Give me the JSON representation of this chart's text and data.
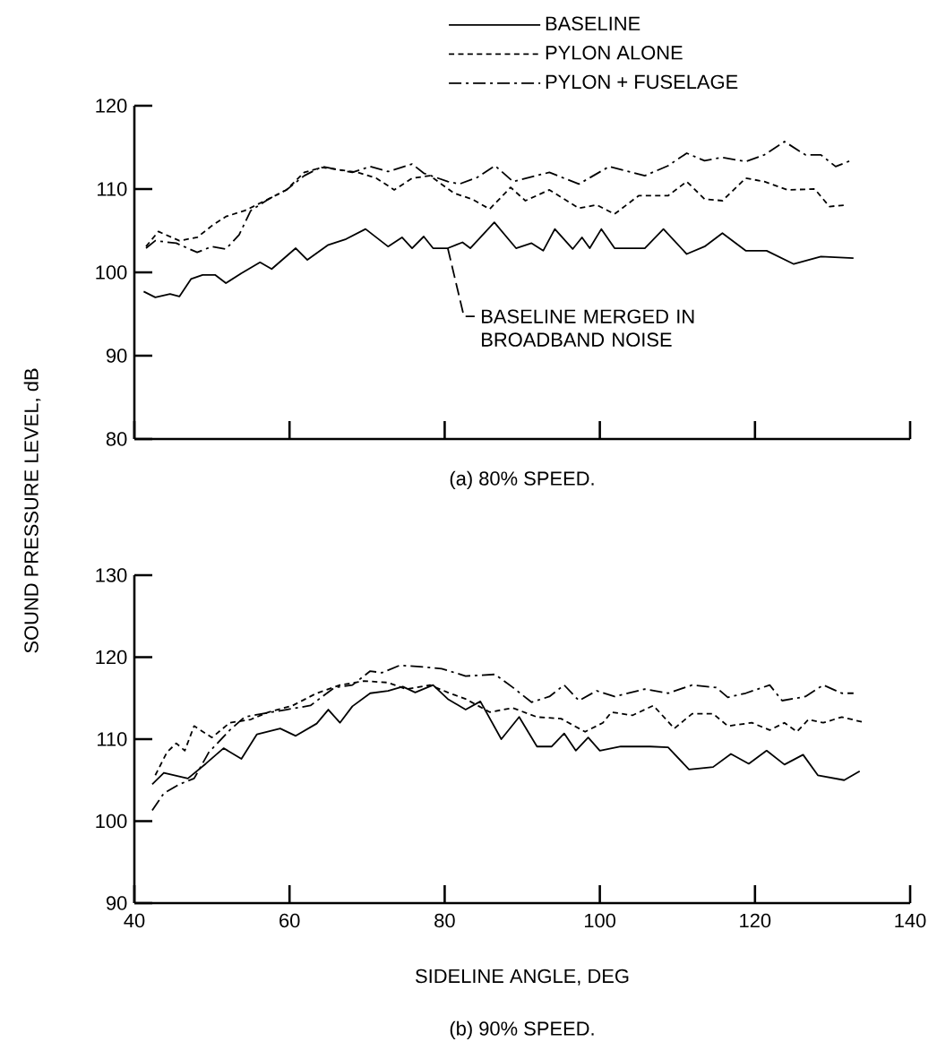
{
  "chart_data": [
    {
      "type": "line",
      "title": "(a) 80% SPEED.",
      "ylabel": "SOUND PRESSURE LEVEL, dB",
      "xlim": [
        40,
        140
      ],
      "ylim": [
        80,
        120
      ],
      "xticks": [
        40,
        60,
        80,
        100,
        120,
        140
      ],
      "yticks": [
        80,
        90,
        100,
        110,
        120
      ],
      "tick_labels": "y",
      "legend": "top right",
      "annotations": [
        {
          "text": "BASELINE MERGED IN BROADBAND NOISE",
          "x": 80.4,
          "y": 102.9
        }
      ],
      "series": [
        {
          "name": "BASELINE",
          "color": "#000000",
          "line_style": "solid",
          "x": [
            41.2,
            42.7,
            44.6,
            45.8,
            47.3,
            48.8,
            50.4,
            51.8,
            53.8,
            56.2,
            57.7,
            60.8,
            62.3,
            65,
            67.3,
            69.8,
            72.7,
            74.5,
            75.8,
            77.3,
            78.5,
            80.4,
            82.3,
            83.3,
            86.4,
            89.2,
            91.2,
            92.7,
            94.2,
            96.5,
            97.7,
            98.7,
            100.2,
            101.9,
            105.8,
            108.2,
            111.2,
            113.5,
            115.8,
            118.8,
            121.5,
            125,
            128.5,
            132.7
          ],
          "values": [
            97.7,
            97.0,
            97.4,
            97.1,
            99.2,
            99.7,
            99.7,
            98.7,
            99.9,
            101.2,
            100.4,
            102.9,
            101.5,
            103.3,
            104.0,
            105.2,
            103.1,
            104.2,
            102.9,
            104.3,
            102.9,
            102.9,
            103.6,
            102.9,
            106.0,
            102.9,
            103.5,
            102.6,
            105.2,
            102.8,
            104.2,
            102.9,
            105.2,
            102.9,
            102.9,
            105.2,
            102.2,
            103.1,
            104.7,
            102.6,
            102.6,
            101.0,
            101.9,
            101.7
          ]
        },
        {
          "name": "PYLON ALONE",
          "color": "#000000",
          "line_style": "dashed",
          "x": [
            41.5,
            43.1,
            45.8,
            48.1,
            50,
            51.8,
            54.2,
            57.3,
            59.6,
            61.9,
            64.2,
            66.5,
            68.8,
            71.2,
            73.5,
            75.8,
            78.1,
            81.2,
            83.5,
            85.8,
            88.5,
            90.4,
            93.5,
            97.3,
            99.6,
            101.9,
            105,
            108.8,
            111.2,
            113.5,
            115.8,
            118.8,
            121.2,
            124.2,
            127.7,
            129.6,
            131.9
          ],
          "values": [
            103.1,
            104.9,
            103.8,
            104.2,
            105.6,
            106.7,
            107.4,
            108.8,
            109.9,
            112.0,
            112.6,
            112.3,
            112.0,
            111.3,
            109.9,
            111.3,
            111.6,
            109.5,
            108.8,
            107.6,
            110.2,
            108.6,
            109.9,
            107.7,
            108.1,
            107.0,
            109.2,
            109.2,
            110.9,
            108.8,
            108.6,
            111.3,
            110.9,
            109.9,
            110.0,
            107.9,
            108.1
          ]
        },
        {
          "name": "PYLON + FUSELAGE",
          "color": "#000000",
          "line_style": "dashdot",
          "x": [
            41.5,
            42.7,
            45.4,
            48.1,
            50,
            51.8,
            53.5,
            55,
            57.3,
            59.6,
            61.9,
            64.2,
            68.1,
            70.4,
            72.7,
            75.8,
            77.3,
            80.4,
            81.9,
            84.2,
            86.5,
            88.8,
            93.5,
            97.3,
            101.2,
            105.8,
            108.8,
            111.2,
            113.5,
            115.8,
            118.8,
            121.2,
            123.8,
            126.5,
            128.5,
            130.4,
            132.3
          ],
          "values": [
            102.9,
            103.8,
            103.5,
            102.4,
            103.1,
            102.8,
            104.5,
            107.4,
            108.8,
            109.9,
            111.6,
            112.7,
            112.0,
            112.7,
            112.1,
            113.0,
            111.9,
            110.9,
            110.6,
            111.4,
            112.8,
            110.9,
            112.0,
            110.6,
            112.7,
            111.6,
            112.8,
            114.3,
            113.4,
            113.8,
            113.3,
            114.1,
            115.7,
            114.1,
            114.1,
            112.7,
            113.4
          ]
        }
      ]
    },
    {
      "type": "line",
      "title": "(b) 90% SPEED.",
      "xlabel": "SIDELINE ANGLE, DEG",
      "xlim": [
        40,
        140
      ],
      "ylim": [
        90,
        130
      ],
      "xticks": [
        40,
        60,
        80,
        100,
        120,
        140
      ],
      "yticks": [
        90,
        100,
        110,
        120,
        130
      ],
      "series": [
        {
          "color": "#000000",
          "line_style": "solid",
          "x": [
            42.3,
            43.8,
            46.9,
            49.2,
            51.5,
            53.8,
            55.8,
            58.8,
            60.8,
            63.5,
            65,
            66.5,
            68.1,
            70.4,
            72.7,
            74.6,
            76.2,
            78.5,
            80.4,
            82.7,
            84.6,
            87.3,
            89.6,
            91.9,
            93.8,
            95.4,
            96.9,
            98.5,
            100,
            102.7,
            106.5,
            108.8,
            111.5,
            114.6,
            116.9,
            119.2,
            121.5,
            123.8,
            126.2,
            128.1,
            131.5,
            133.5
          ],
          "values": [
            104.5,
            105.9,
            105.2,
            107.0,
            108.9,
            107.6,
            110.6,
            111.3,
            110.4,
            111.9,
            113.6,
            112.0,
            114.0,
            115.6,
            115.9,
            116.4,
            115.7,
            116.6,
            114.9,
            113.6,
            114.6,
            110.0,
            112.7,
            109.1,
            109.1,
            110.7,
            108.6,
            110.2,
            108.6,
            109.1,
            109.1,
            109.0,
            106.3,
            106.6,
            108.2,
            107.0,
            108.6,
            106.9,
            108.1,
            105.6,
            105.0,
            106.1
          ]
        },
        {
          "color": "#000000",
          "line_style": "dashed",
          "x": [
            42.7,
            44.2,
            45.4,
            46.5,
            47.7,
            50,
            52.3,
            55,
            57.3,
            60.4,
            63.5,
            66.5,
            69.6,
            72.7,
            75,
            78.1,
            80.4,
            82.7,
            85.8,
            88.8,
            91.9,
            95,
            98.1,
            100.4,
            101.5,
            104.2,
            106.9,
            109.6,
            111.9,
            114.6,
            116.5,
            119.6,
            121.9,
            123.8,
            125.4,
            126.9,
            128.8,
            131.2,
            133.8
          ],
          "values": [
            105.6,
            108.4,
            109.5,
            108.6,
            111.6,
            110.2,
            112.0,
            112.4,
            113.3,
            114.1,
            115.6,
            116.6,
            117.1,
            116.9,
            116.1,
            116.6,
            115.7,
            114.9,
            113.3,
            113.8,
            112.7,
            112.5,
            110.9,
            112.0,
            113.3,
            112.9,
            114.1,
            111.3,
            113.1,
            113.1,
            111.6,
            112.0,
            111.1,
            112.0,
            110.9,
            112.4,
            112.0,
            112.7,
            112.1
          ]
        },
        {
          "color": "#000000",
          "line_style": "dashdot",
          "x": [
            42.3,
            43.8,
            45.8,
            47.7,
            49.6,
            52.3,
            54.2,
            56.5,
            59.6,
            62.7,
            65.8,
            68.1,
            70.4,
            71.9,
            74.2,
            77.3,
            79.6,
            82.7,
            86.5,
            88.8,
            91.2,
            93.5,
            95.4,
            97.3,
            99.6,
            101.9,
            105.8,
            108.8,
            111.9,
            115,
            116.5,
            118.8,
            121.9,
            123.5,
            126.5,
            128.8,
            131.2,
            132.7
          ],
          "values": [
            101.3,
            103.4,
            104.5,
            105.2,
            108.4,
            111.1,
            112.7,
            113.1,
            113.6,
            114.1,
            116.3,
            116.6,
            118.3,
            118.1,
            119.0,
            118.8,
            118.6,
            117.7,
            117.9,
            116.3,
            114.5,
            115.2,
            116.6,
            114.7,
            115.9,
            115.2,
            116.1,
            115.6,
            116.6,
            116.3,
            115.1,
            115.6,
            116.6,
            114.7,
            115.2,
            116.6,
            115.6,
            115.6
          ]
        }
      ]
    }
  ]
}
